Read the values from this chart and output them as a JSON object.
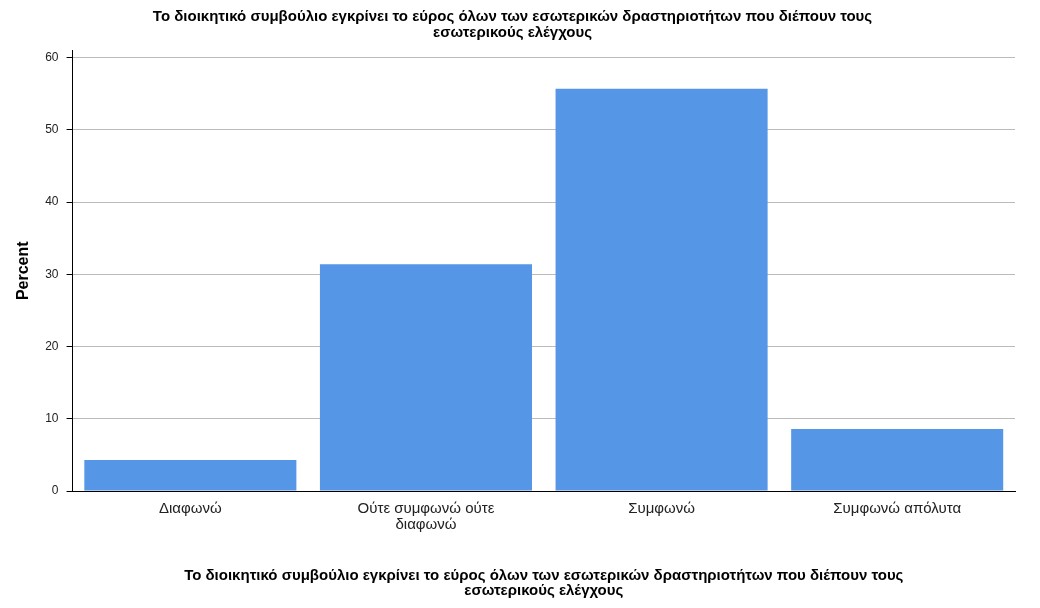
{
  "chart_data": {
    "type": "bar",
    "title": "Το διοικητικό συμβούλιο εγκρίνει το εύρος όλων των εσωτερικών δραστηριοτήτων που διέπουν τους εσωτερικούς ελέγχους",
    "xlabel": "Το διοικητικό συμβούλιο εγκρίνει το εύρος όλων των εσωτερικών δραστηριοτήτων που διέπουν τους εσωτερικούς ελέγχους",
    "ylabel": "Percent",
    "categories": [
      "Διαφωνώ",
      "Ούτε συμφωνώ ούτε διαφωνώ",
      "Συμφωνώ",
      "Συμφωνώ απόλυτα"
    ],
    "values": [
      4.3,
      31.4,
      55.7,
      8.6
    ],
    "color": "#5596e6",
    "ylim": [
      0,
      61
    ],
    "yticks": [
      0,
      10,
      20,
      30,
      40,
      50,
      60
    ],
    "grid": "y"
  }
}
